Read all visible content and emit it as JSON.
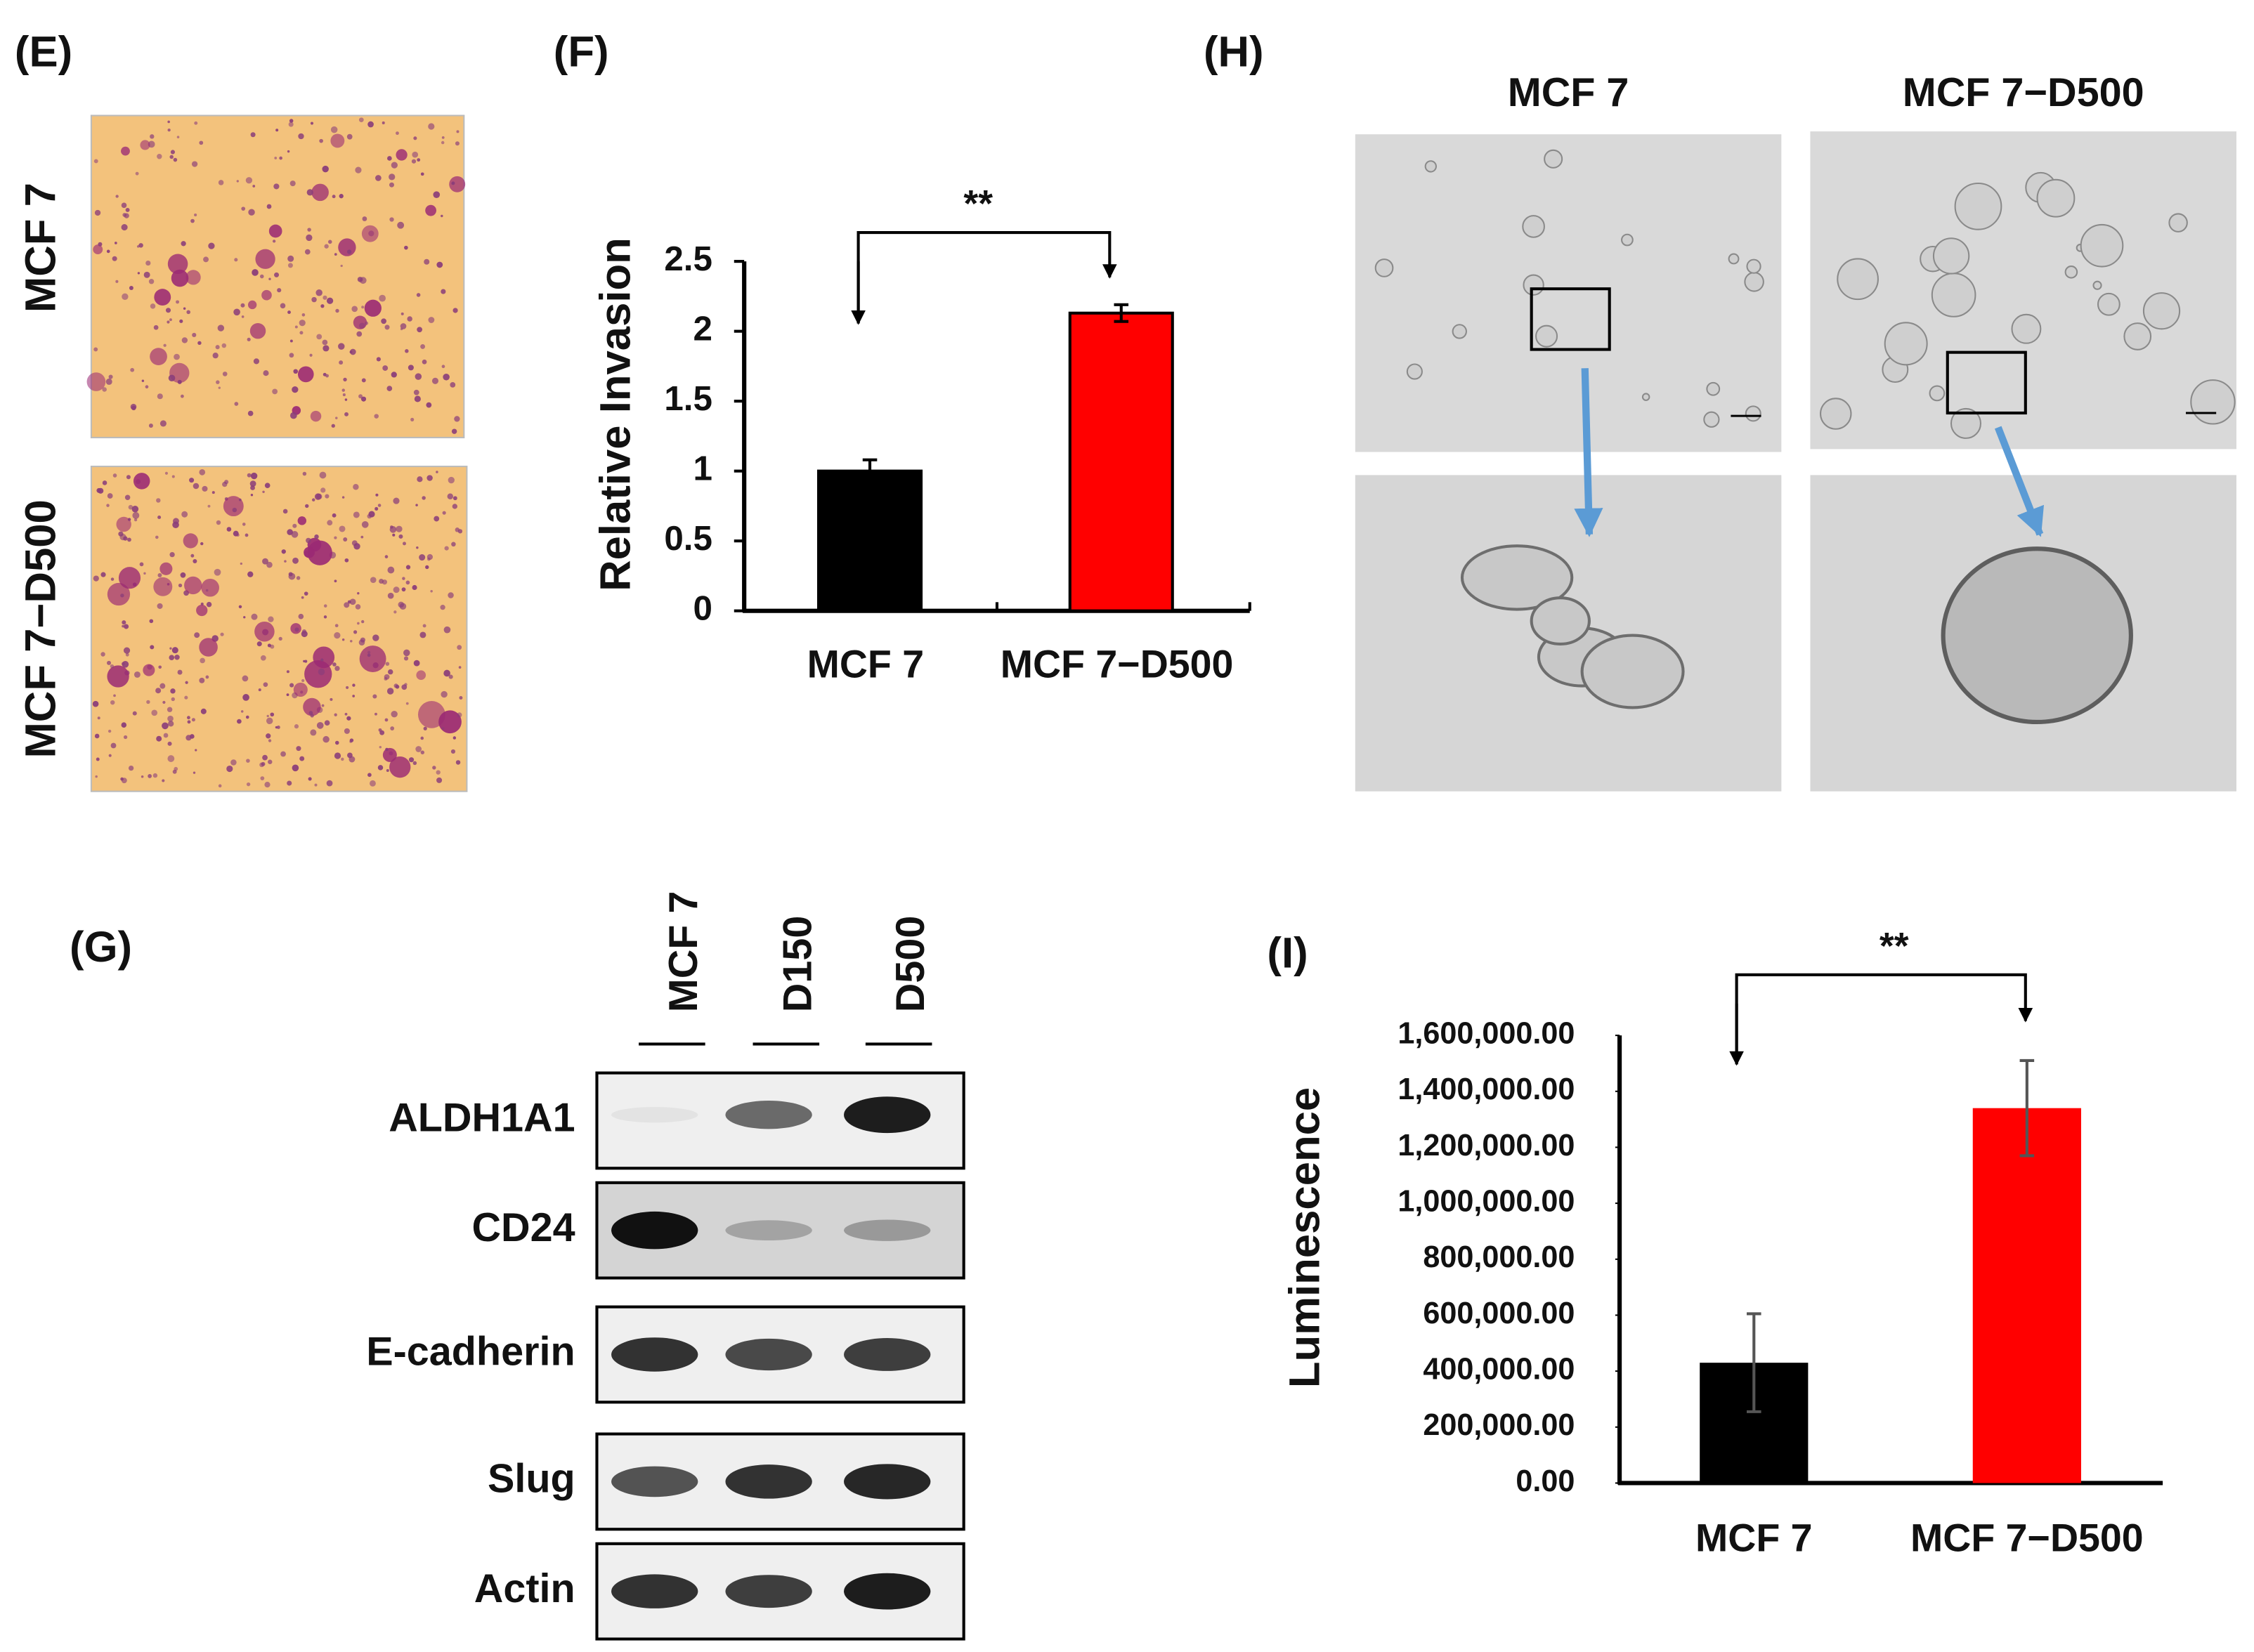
{
  "panel_labels": [
    "(E)",
    "(F)",
    "(H)",
    "(G)",
    "(I)"
  ],
  "invasion_images": {
    "row_labels": [
      "MCF 7",
      "MCF 7−D500"
    ]
  },
  "spheroid_images": {
    "column_labels": [
      "MCF 7",
      "MCF 7−D500"
    ]
  },
  "western_blot": {
    "lanes": [
      "MCF 7",
      "D150",
      "D500"
    ],
    "proteins": [
      "ALDH1A1",
      "CD24",
      "E-cadherin",
      "Slug",
      "Actin"
    ]
  },
  "chart_data": [
    {
      "type": "bar",
      "ylabel": "Relative Invasion",
      "categories": [
        "MCF 7",
        "MCF 7−D500"
      ],
      "values": [
        1,
        2.13
      ],
      "errors": [
        0.08,
        0.06
      ],
      "colors": [
        "#000000",
        "#ff0000"
      ],
      "ylim": [
        0,
        2.5
      ],
      "yticks": [
        0,
        0.5,
        1,
        1.5,
        2,
        2.5
      ],
      "significance": "**"
    },
    {
      "type": "bar",
      "ylabel": "Luminescence",
      "categories": [
        "MCF 7",
        "MCF 7−D500"
      ],
      "values": [
        430000,
        1340000
      ],
      "errors": [
        175000,
        170000
      ],
      "colors": [
        "#000000",
        "#ff0000"
      ],
      "ylim": [
        0,
        1600000
      ],
      "yticks": [
        {
          "value": 0,
          "label": "0.00"
        },
        {
          "value": 200000,
          "label": "200,000.00"
        },
        {
          "value": 400000,
          "label": "400,000.00"
        },
        {
          "value": 600000,
          "label": "600,000.00"
        },
        {
          "value": 800000,
          "label": "800,000.00"
        },
        {
          "value": 1000000,
          "label": "1,000,000.00"
        },
        {
          "value": 1200000,
          "label": "1,200,000.00"
        },
        {
          "value": 1400000,
          "label": "1,400,000.00"
        },
        {
          "value": 1600000,
          "label": "1,600,000.00"
        }
      ],
      "significance": "**"
    }
  ]
}
